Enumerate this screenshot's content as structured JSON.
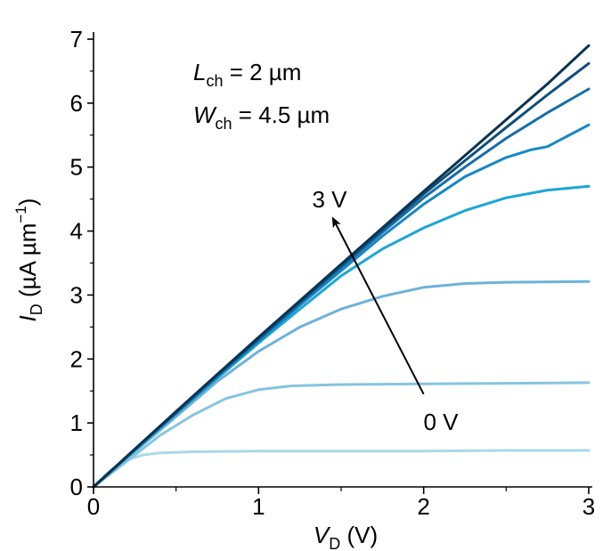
{
  "chart_data": {
    "type": "line",
    "xlabel": {
      "var": "V",
      "sub": "D",
      "unit": " (V)"
    },
    "ylabel": {
      "var": "I",
      "sub": "D",
      "unit": " (µA µm",
      "unit_exp": "−1",
      "unit_close": ")"
    },
    "xlim": [
      0,
      3
    ],
    "ylim": [
      0,
      7
    ],
    "x_ticks": [
      0,
      1,
      2,
      3
    ],
    "x_tick_labels": [
      "0",
      "1",
      "2",
      "3"
    ],
    "y_ticks": [
      0,
      1,
      2,
      3,
      4,
      5,
      6,
      7
    ],
    "y_tick_labels": [
      "0",
      "1",
      "2",
      "3",
      "4",
      "5",
      "6",
      "7"
    ],
    "grid": false,
    "annotations": {
      "lch": {
        "var": "L",
        "sub": "ch",
        "value": " = 2 µm"
      },
      "wch": {
        "var": "W",
        "sub": "ch",
        "value": " = 4.5 µm"
      },
      "arrow_start_label": "0 V",
      "arrow_end_label": "3 V",
      "arrow_from": [
        2.0,
        1.45
      ],
      "arrow_to": [
        1.45,
        4.2
      ]
    },
    "series": [
      {
        "color": "#a9d9e8",
        "points": [
          [
            0,
            0
          ],
          [
            0.1,
            0.25
          ],
          [
            0.2,
            0.42
          ],
          [
            0.3,
            0.5
          ],
          [
            0.4,
            0.53
          ],
          [
            0.6,
            0.55
          ],
          [
            1.0,
            0.56
          ],
          [
            1.5,
            0.56
          ],
          [
            2.0,
            0.56
          ],
          [
            2.5,
            0.57
          ],
          [
            3.0,
            0.57
          ]
        ]
      },
      {
        "color": "#85c5df",
        "points": [
          [
            0,
            0
          ],
          [
            0.2,
            0.4
          ],
          [
            0.4,
            0.8
          ],
          [
            0.6,
            1.12
          ],
          [
            0.8,
            1.38
          ],
          [
            1.0,
            1.52
          ],
          [
            1.2,
            1.58
          ],
          [
            1.5,
            1.6
          ],
          [
            2.0,
            1.61
          ],
          [
            2.5,
            1.62
          ],
          [
            3.0,
            1.63
          ]
        ]
      },
      {
        "color": "#6db3d8",
        "points": [
          [
            0,
            0
          ],
          [
            0.25,
            0.55
          ],
          [
            0.5,
            1.1
          ],
          [
            0.75,
            1.65
          ],
          [
            1.0,
            2.12
          ],
          [
            1.25,
            2.5
          ],
          [
            1.5,
            2.78
          ],
          [
            1.75,
            2.98
          ],
          [
            2.0,
            3.12
          ],
          [
            2.25,
            3.18
          ],
          [
            2.5,
            3.2
          ],
          [
            3.0,
            3.21
          ]
        ]
      },
      {
        "color": "#1ba6d8",
        "points": [
          [
            0,
            0
          ],
          [
            0.25,
            0.57
          ],
          [
            0.5,
            1.14
          ],
          [
            0.75,
            1.7
          ],
          [
            1.0,
            2.25
          ],
          [
            1.25,
            2.78
          ],
          [
            1.5,
            3.3
          ],
          [
            1.75,
            3.72
          ],
          [
            2.0,
            4.05
          ],
          [
            2.25,
            4.32
          ],
          [
            2.5,
            4.52
          ],
          [
            2.75,
            4.64
          ],
          [
            3.0,
            4.7
          ]
        ]
      },
      {
        "color": "#1787c6",
        "points": [
          [
            0,
            0
          ],
          [
            0.25,
            0.58
          ],
          [
            0.5,
            1.15
          ],
          [
            0.75,
            1.72
          ],
          [
            1.0,
            2.28
          ],
          [
            1.25,
            2.84
          ],
          [
            1.5,
            3.38
          ],
          [
            1.75,
            3.92
          ],
          [
            2.0,
            4.42
          ],
          [
            2.25,
            4.85
          ],
          [
            2.5,
            5.15
          ],
          [
            2.65,
            5.27
          ],
          [
            2.75,
            5.32
          ],
          [
            3.0,
            5.66
          ]
        ]
      },
      {
        "color": "#156ea9",
        "points": [
          [
            0,
            0
          ],
          [
            0.25,
            0.58
          ],
          [
            0.5,
            1.16
          ],
          [
            0.75,
            1.74
          ],
          [
            1.0,
            2.3
          ],
          [
            1.25,
            2.87
          ],
          [
            1.5,
            3.43
          ],
          [
            1.75,
            3.98
          ],
          [
            2.0,
            4.52
          ],
          [
            2.25,
            5.0
          ],
          [
            2.5,
            5.45
          ],
          [
            2.75,
            5.85
          ],
          [
            3.0,
            6.22
          ]
        ]
      },
      {
        "color": "#0f4f7f",
        "points": [
          [
            0,
            0
          ],
          [
            0.25,
            0.59
          ],
          [
            0.5,
            1.17
          ],
          [
            0.75,
            1.75
          ],
          [
            1.0,
            2.32
          ],
          [
            1.25,
            2.89
          ],
          [
            1.5,
            3.46
          ],
          [
            1.75,
            4.02
          ],
          [
            2.0,
            4.58
          ],
          [
            2.25,
            5.1
          ],
          [
            2.5,
            5.62
          ],
          [
            2.75,
            6.13
          ],
          [
            3.0,
            6.62
          ]
        ]
      },
      {
        "color": "#0b3450",
        "points": [
          [
            0,
            0
          ],
          [
            0.25,
            0.59
          ],
          [
            0.5,
            1.18
          ],
          [
            0.75,
            1.76
          ],
          [
            1.0,
            2.34
          ],
          [
            1.25,
            2.91
          ],
          [
            1.5,
            3.48
          ],
          [
            1.75,
            4.05
          ],
          [
            2.0,
            4.62
          ],
          [
            2.25,
            5.18
          ],
          [
            2.5,
            5.74
          ],
          [
            2.75,
            6.3
          ],
          [
            3.0,
            6.9
          ]
        ]
      }
    ]
  }
}
